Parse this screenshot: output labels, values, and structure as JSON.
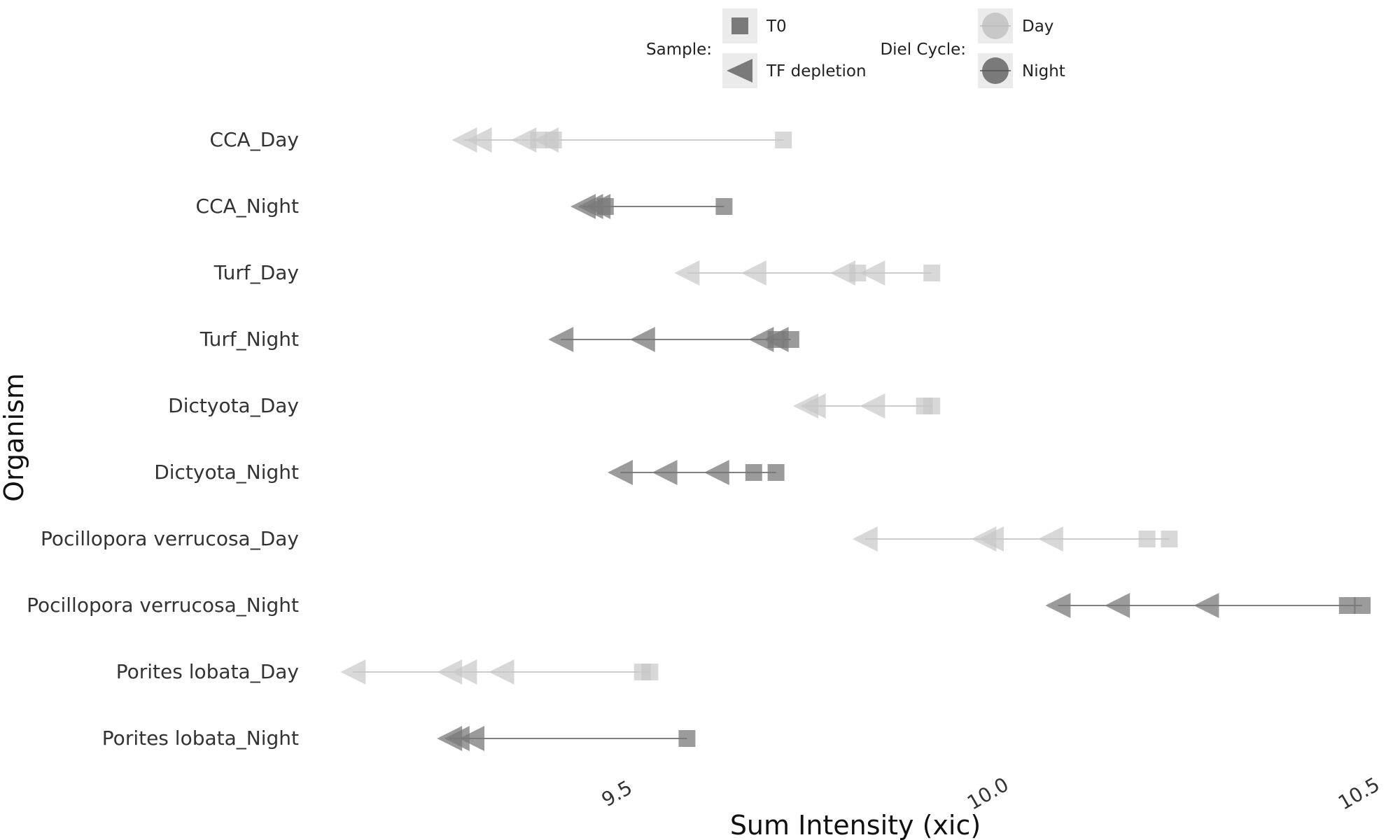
{
  "chart_data": {
    "type": "scatter",
    "xlabel": "Sum Intensity (xic)",
    "ylabel": "Organism",
    "xlim": [
      9.05,
      10.55
    ],
    "xticks": [
      "9.5",
      "10.0",
      "10.5"
    ],
    "grid": false,
    "legend_position": "top",
    "legend": {
      "sample_title": "Sample:",
      "sample_items": [
        {
          "label": "T0",
          "marker": "square"
        },
        {
          "label": "TF depletion",
          "marker": "triangle-left"
        }
      ],
      "diel_title": "Diel Cycle:",
      "diel_items": [
        {
          "label": "Day",
          "color": "#c8c8c8"
        },
        {
          "label": "Night",
          "color": "#7a7a7a"
        }
      ]
    },
    "colors": {
      "Day": "#c8c8c8",
      "Night": "#7a7a7a",
      "day_line": "#bbbbbb",
      "night_line": "#555555",
      "text": "#333333"
    },
    "categories": [
      "CCA_Day",
      "CCA_Night",
      "Turf_Day",
      "Turf_Night",
      "Dictyota_Day",
      "Dictyota_Night",
      "Pocillopora verrucosa_Day",
      "Pocillopora verrucosa_Night",
      "Porites lobata_Day",
      "Porites lobata_Night"
    ],
    "series": [
      {
        "name": "CCA_Day",
        "diel": "Day",
        "t0": [
          9.41,
          9.39,
          9.72
        ],
        "tf": [
          9.29,
          9.31,
          9.37,
          9.4
        ]
      },
      {
        "name": "CCA_Night",
        "diel": "Night",
        "t0": [
          9.48,
          9.64
        ],
        "tf": [
          9.45,
          9.46,
          9.47
        ]
      },
      {
        "name": "Turf_Day",
        "diel": "Day",
        "t0": [
          9.82,
          9.92
        ],
        "tf": [
          9.59,
          9.68,
          9.8,
          9.84
        ]
      },
      {
        "name": "Turf_Night",
        "diel": "Night",
        "t0": [
          9.71,
          9.73
        ],
        "tf": [
          9.42,
          9.53,
          9.69,
          9.71
        ]
      },
      {
        "name": "Dictyota_Day",
        "diel": "Day",
        "t0": [
          9.91,
          9.92
        ],
        "tf": [
          9.75,
          9.76,
          9.84
        ]
      },
      {
        "name": "Dictyota_Night",
        "diel": "Night",
        "t0": [
          9.68,
          9.71
        ],
        "tf": [
          9.5,
          9.56,
          9.63
        ]
      },
      {
        "name": "Pocillopora verrucosa_Day",
        "diel": "Day",
        "t0": [
          10.21,
          10.24
        ],
        "tf": [
          9.83,
          9.99,
          10.0,
          10.08
        ]
      },
      {
        "name": "Pocillopora verrucosa_Night",
        "diel": "Night",
        "t0": [
          10.48,
          10.5
        ],
        "tf": [
          10.09,
          10.17,
          10.29
        ]
      },
      {
        "name": "Porites lobata_Day",
        "diel": "Day",
        "t0": [
          9.53,
          9.54
        ],
        "tf": [
          9.14,
          9.27,
          9.29,
          9.34
        ]
      },
      {
        "name": "Porites lobata_Night",
        "diel": "Night",
        "t0": [
          9.59
        ],
        "tf": [
          9.27,
          9.28,
          9.3
        ]
      }
    ]
  }
}
